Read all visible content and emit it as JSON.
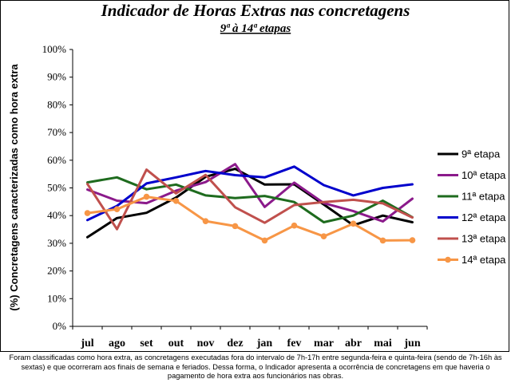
{
  "chart_data": {
    "type": "line",
    "title": "Indicador de Horas Extras nas concretagens",
    "subtitle": "9ª à 14ª etapas",
    "ylabel": "(%) Concretagens caracterizadas como hora extra",
    "xlabel": "",
    "ylim": [
      0,
      100
    ],
    "yticks": [
      "0%",
      "10%",
      "20%",
      "30%",
      "40%",
      "50%",
      "60%",
      "70%",
      "80%",
      "90%",
      "100%"
    ],
    "categories": [
      "jul",
      "ago",
      "set",
      "out",
      "nov",
      "dez",
      "jan",
      "fev",
      "mar",
      "abr",
      "mai",
      "jun"
    ],
    "grid": false,
    "legend": "right",
    "series": [
      {
        "name": "9ª etapa",
        "color": "#000000",
        "marker": false,
        "values": [
          32.2,
          39.1,
          41.0,
          46.5,
          54.0,
          56.9,
          51.2,
          51.3,
          44.0,
          36.5,
          40.0,
          37.6
        ]
      },
      {
        "name": "10ª etapa",
        "color": "#8B1A8B",
        "marker": false,
        "values": [
          49.4,
          45.4,
          44.5,
          49.0,
          52.1,
          58.6,
          43.1,
          51.9,
          44.5,
          41.6,
          37.9,
          46.1
        ]
      },
      {
        "name": "11ª etapa",
        "color": "#1E6B1E",
        "marker": false,
        "values": [
          52.0,
          53.8,
          49.5,
          51.2,
          47.3,
          46.3,
          47.1,
          44.9,
          37.6,
          40.0,
          45.4,
          39.4
        ]
      },
      {
        "name": "12ª etapa",
        "color": "#0000CC",
        "marker": false,
        "values": [
          38.4,
          43.5,
          51.6,
          53.8,
          56.1,
          54.6,
          53.8,
          57.7,
          51.0,
          47.3,
          50.0,
          51.3
        ]
      },
      {
        "name": "13ª etapa",
        "color": "#C0504D",
        "marker": false,
        "values": [
          51.4,
          35.1,
          56.6,
          48.0,
          54.7,
          43.0,
          37.4,
          43.8,
          44.9,
          45.7,
          44.4,
          39.3
        ]
      },
      {
        "name": "14ª etapa",
        "color": "#F79646",
        "marker": true,
        "values": [
          40.9,
          42.3,
          46.8,
          45.3,
          38.0,
          36.2,
          31.0,
          36.4,
          32.5,
          37.1,
          31.0,
          31.1
        ]
      }
    ]
  },
  "footnote": "Foram classificadas como hora extra, as concretagens executadas fora do intervalo de 7h-17h entre segunda-feira e quinta-feira (sendo de 7h-16h às sextas) e que ocorreram aos finais de semana e feriados. Dessa forma, o Indicador apresenta a ocorrência de concretagens em que haveria o pagamento de hora extra aos funcionários nas obras."
}
